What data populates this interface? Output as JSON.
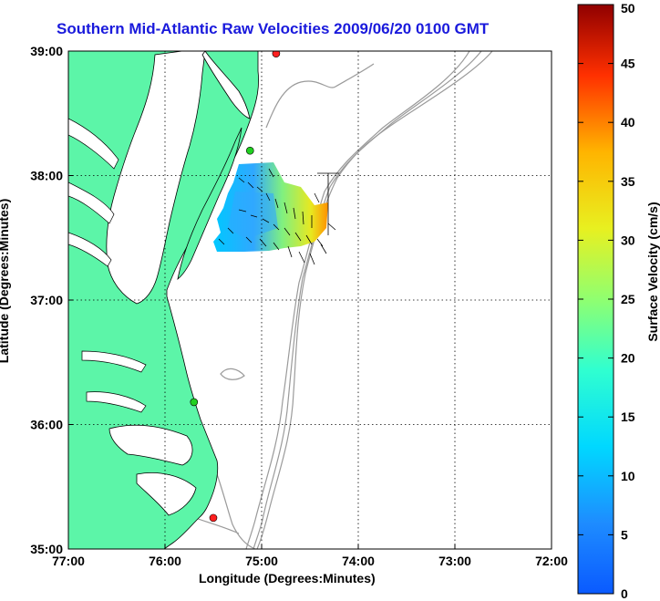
{
  "title": "Southern Mid-Atlantic Raw Velocities 2009/06/20 0100 GMT",
  "x_axis": {
    "label": "Longitude (Degrees:Minutes)",
    "ticks": [
      "77:00",
      "76:00",
      "75:00",
      "74:00",
      "73:00",
      "72:00"
    ]
  },
  "y_axis": {
    "label": "Latitude (Degrees:Minutes)",
    "ticks": [
      "39:00",
      "38:00",
      "37:00",
      "36:00",
      "35:00"
    ]
  },
  "colorbar": {
    "label": "Surface Velocity (cm/s)",
    "ticks": [
      "50",
      "45",
      "40",
      "35",
      "30",
      "25",
      "20",
      "15",
      "10",
      "5",
      "0"
    ],
    "range": [
      0,
      50
    ],
    "colormap": "jet"
  },
  "colors": {
    "land": "#5cf5a8",
    "coast": "#000000",
    "bathymetry": "#9a9a9a",
    "grid": "#000000",
    "title": "#1a1adc"
  },
  "map": {
    "lon_range": [
      -77,
      -72
    ],
    "lat_range": [
      35,
      39
    ],
    "grid": true,
    "stations": [
      {
        "lon": -74.85,
        "lat": 38.98,
        "color": "#ff2020"
      },
      {
        "lon": -75.12,
        "lat": 38.2,
        "color": "#20d020"
      },
      {
        "lon": -75.7,
        "lat": 36.18,
        "color": "#20d020"
      },
      {
        "lon": -75.5,
        "lat": 35.25,
        "color": "#ff2020"
      }
    ]
  }
}
